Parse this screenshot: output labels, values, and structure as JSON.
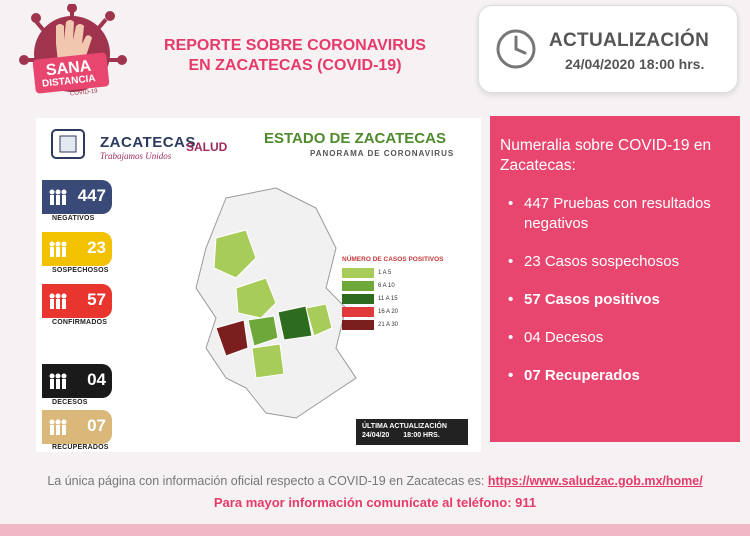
{
  "logo": {
    "line1": "SANA",
    "line2": "DISTANCIA",
    "tag": "COVID-19"
  },
  "header": {
    "title_line1": "REPORTE SOBRE CORONAVIRUS",
    "title_line2": "EN ZACATECAS  (COVID-19)"
  },
  "update": {
    "label": "ACTUALIZACIÓN",
    "date": "24/04/2020 18:00 hrs.",
    "icon": "clock-icon"
  },
  "infographic": {
    "brand": "ZACATECAS",
    "slogan": "Trabajamos Unidos",
    "salud": "SALUD",
    "state_title": "ESTADO DE ZACATECAS",
    "subtitle": "PANORAMA DE CORONAVIRUS",
    "stats": [
      {
        "value": "447",
        "label": "NEGATIVOS",
        "color": "#3a4a78"
      },
      {
        "value": "23",
        "label": "SOSPECHOSOS",
        "color": "#f2c100"
      },
      {
        "value": "57",
        "label": "CONFIRMADOS",
        "color": "#e8362f"
      },
      {
        "value": "04",
        "label": "DECESOS",
        "color": "#1a1a1a"
      },
      {
        "value": "07",
        "label": "RECUPERADOS",
        "color": "#d9b879"
      }
    ],
    "legend_title": "NÚMERO DE CASOS POSITIVOS",
    "legend": [
      {
        "label": "1 A 5",
        "color": "#a8cc5a"
      },
      {
        "label": "6 A 10",
        "color": "#6ea83a"
      },
      {
        "label": "11 A 15",
        "color": "#2d6b1f"
      },
      {
        "label": "16 A 20",
        "color": "#e03a3a"
      },
      {
        "label": "21 A 30",
        "color": "#7a1e1e"
      }
    ],
    "last_update_label": "ÚLTIMA ACTUALIZACIÓN",
    "last_update_date": "24/04/20",
    "last_update_time": "18:00 HRS."
  },
  "facts": {
    "title": "Numeralia sobre COVID-19 en Zacatecas:",
    "items": [
      {
        "text": "447 Pruebas con resultados negativos",
        "bold": false
      },
      {
        "text": "23 Casos sospechosos",
        "bold": false
      },
      {
        "text": "57 Casos positivos",
        "bold": true
      },
      {
        "text": "04 Decesos",
        "bold": false
      },
      {
        "text": "07 Recuperados",
        "bold": true
      }
    ],
    "bg_color": "#e8466f"
  },
  "footer": {
    "line1": "La única página con información oficial respecto a COVID-19 en Zacatecas es:",
    "link": "https://www.saludzac.gob.mx/home/",
    "line2": "Para mayor información comunícate al teléfono: 911"
  }
}
